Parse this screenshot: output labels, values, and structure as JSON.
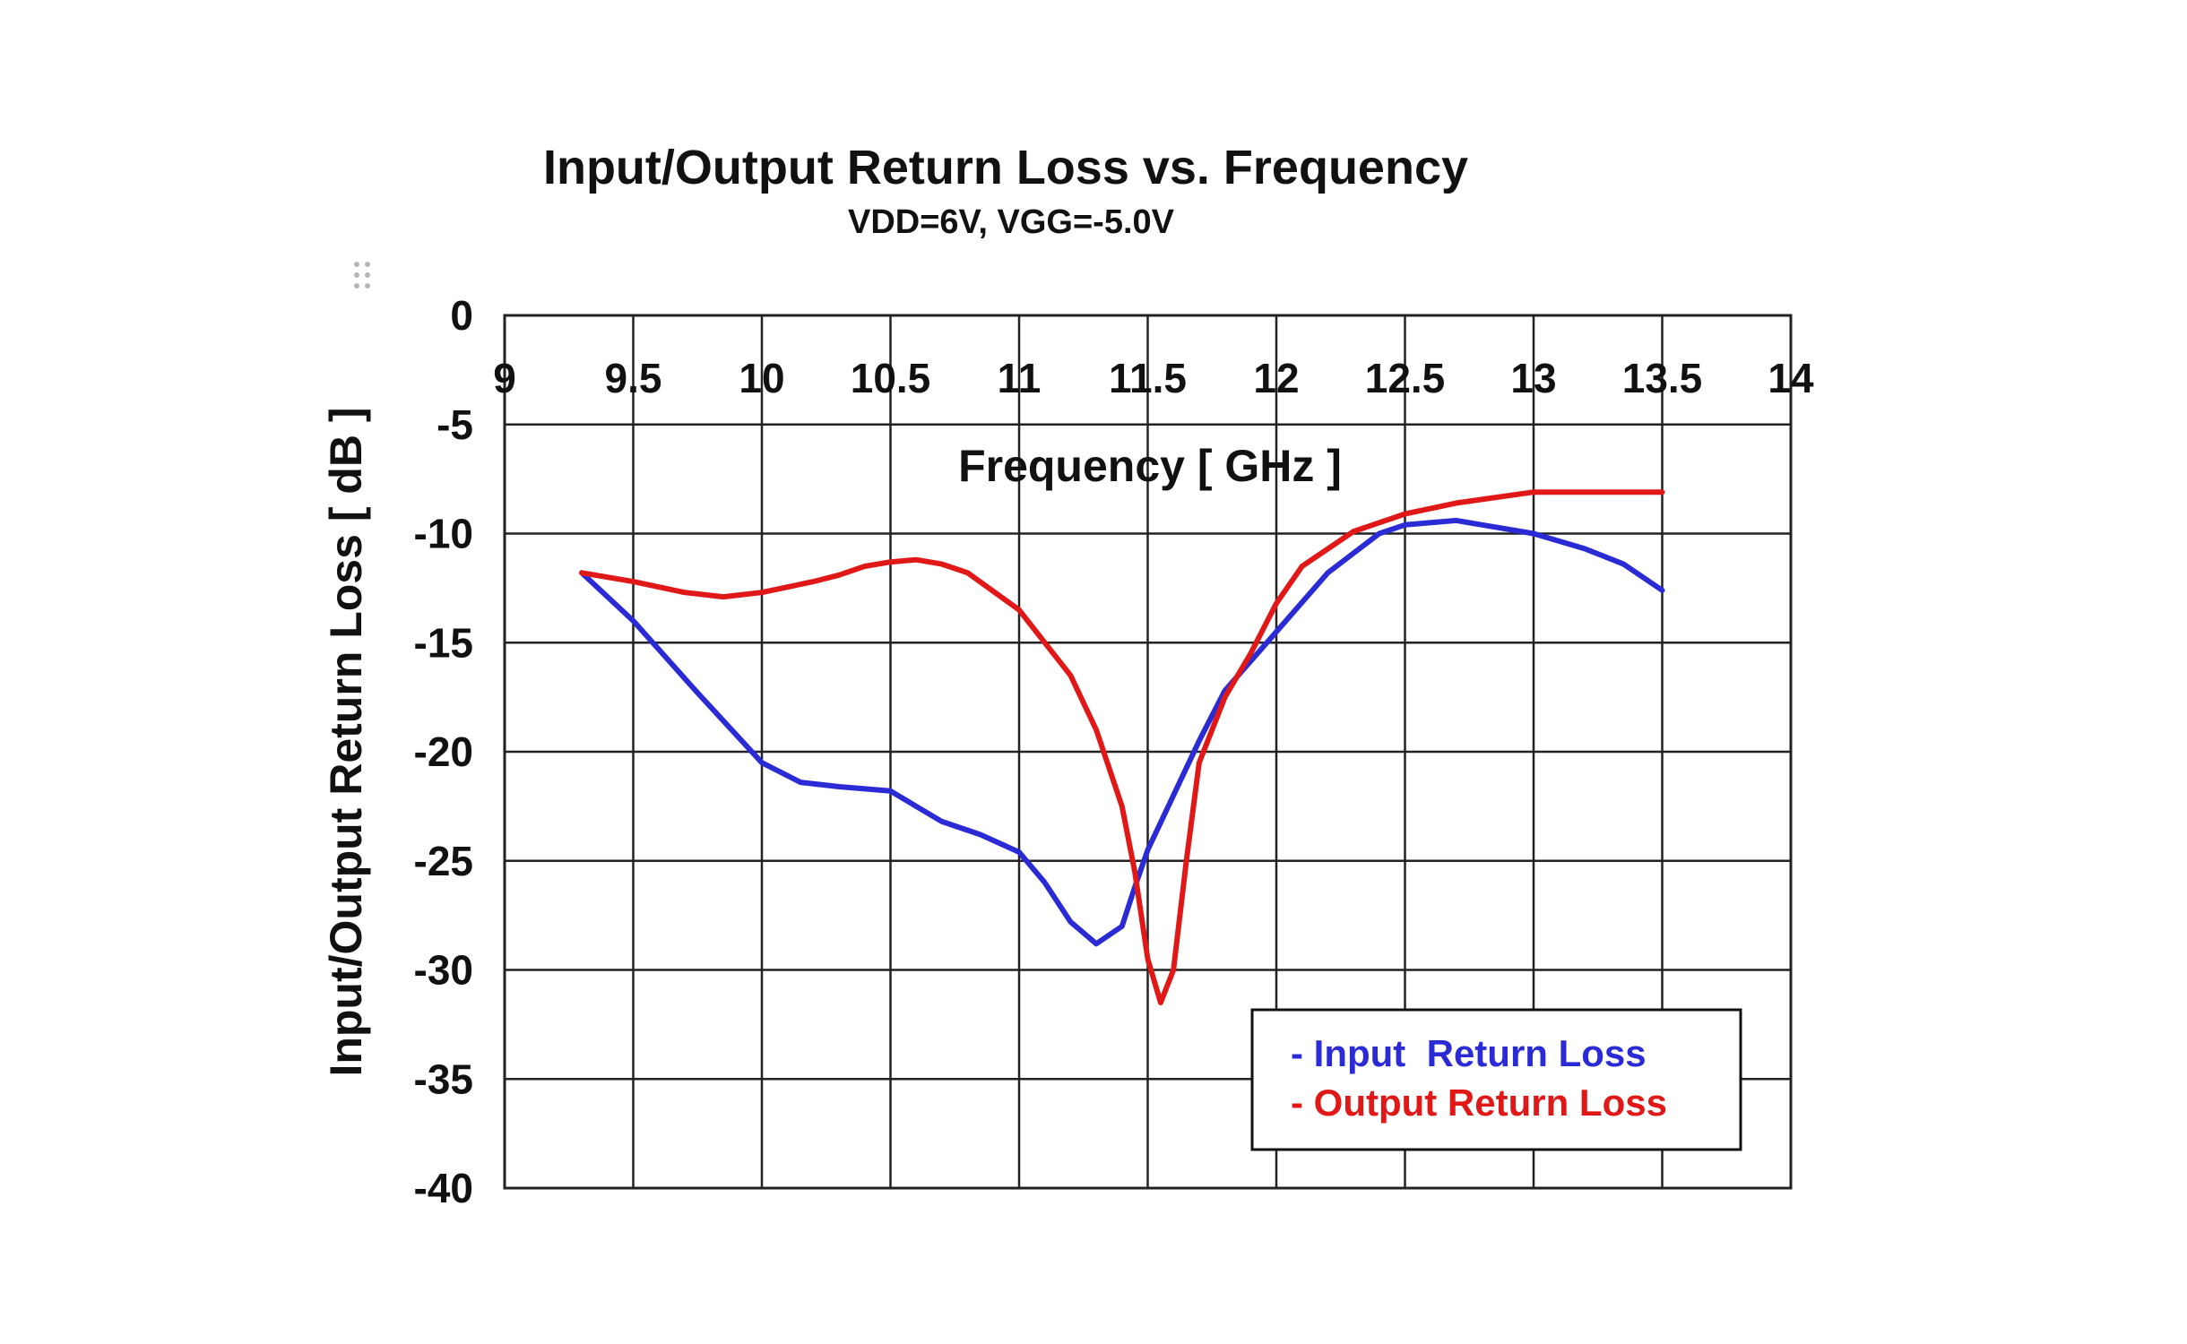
{
  "chart_data": {
    "type": "line",
    "title": "Input/Output Return Loss vs. Frequency",
    "subtitle": "VDD=6V, VGG=-5.0V",
    "xlabel": "Frequency [ GHz ]",
    "ylabel": "Input/Output Return Loss [ dB ]",
    "xlim": [
      9,
      14
    ],
    "ylim": [
      -40,
      0
    ],
    "x_ticks": [
      9,
      9.5,
      10,
      10.5,
      11,
      11.5,
      12,
      12.5,
      13,
      13.5,
      14
    ],
    "x_tick_labels": [
      "9",
      "9.5",
      "10",
      "10.5",
      "11",
      "11.5",
      "12",
      "12.5",
      "13",
      "13.5",
      "14"
    ],
    "y_ticks": [
      0,
      -5,
      -10,
      -15,
      -20,
      -25,
      -30,
      -35,
      -40
    ],
    "y_tick_labels": [
      "0",
      "-5",
      "-10",
      "-15",
      "-20",
      "-25",
      "-30",
      "-35",
      "-40"
    ],
    "grid": true,
    "legend_position": "bottom-right",
    "series": [
      {
        "name": "- Input  Return Loss",
        "color": "#2b2bd6",
        "x": [
          9.3,
          9.5,
          9.75,
          10.0,
          10.15,
          10.3,
          10.5,
          10.6,
          10.7,
          10.85,
          11.0,
          11.1,
          11.2,
          11.3,
          11.4,
          11.45,
          11.5,
          11.6,
          11.7,
          11.8,
          12.0,
          12.2,
          12.4,
          12.5,
          12.7,
          12.8,
          13.0,
          13.2,
          13.35,
          13.5
        ],
        "y": [
          -11.8,
          -14.0,
          -17.3,
          -20.5,
          -21.4,
          -21.6,
          -21.8,
          -22.5,
          -23.2,
          -23.8,
          -24.6,
          -26.0,
          -27.8,
          -28.8,
          -28.0,
          -26.2,
          -24.5,
          -22.0,
          -19.5,
          -17.2,
          -14.5,
          -11.8,
          -10.0,
          -9.6,
          -9.4,
          -9.6,
          -10.0,
          -10.7,
          -11.4,
          -12.6
        ]
      },
      {
        "name": "- Output Return Loss",
        "color": "#e01818",
        "x": [
          9.3,
          9.5,
          9.7,
          9.85,
          10.0,
          10.2,
          10.3,
          10.4,
          10.5,
          10.6,
          10.7,
          10.8,
          11.0,
          11.1,
          11.2,
          11.3,
          11.4,
          11.45,
          11.5,
          11.55,
          11.6,
          11.65,
          11.7,
          11.8,
          11.9,
          12.0,
          12.1,
          12.3,
          12.5,
          12.7,
          13.0,
          13.2,
          13.5
        ],
        "y": [
          -11.8,
          -12.2,
          -12.7,
          -12.9,
          -12.7,
          -12.2,
          -11.9,
          -11.5,
          -11.3,
          -11.2,
          -11.4,
          -11.8,
          -13.5,
          -15.0,
          -16.5,
          -19.0,
          -22.5,
          -25.5,
          -29.5,
          -31.5,
          -30.0,
          -25.0,
          -20.5,
          -17.5,
          -15.5,
          -13.2,
          -11.5,
          -9.9,
          -9.1,
          -8.6,
          -8.1,
          -8.1,
          -8.1
        ]
      }
    ]
  }
}
